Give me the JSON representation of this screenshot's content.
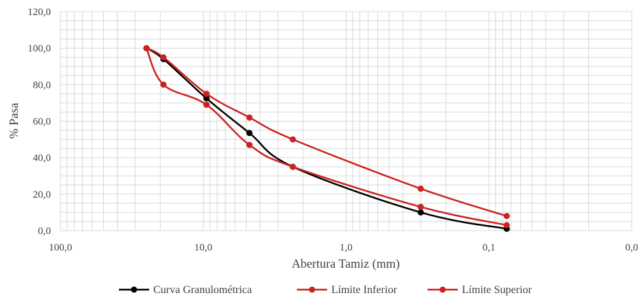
{
  "chart_data": {
    "type": "line",
    "title": "",
    "xlabel": "Abertura Tamiz (mm)",
    "ylabel": "% Pasa",
    "x_scale": "log",
    "x_reversed": true,
    "xlim": [
      100,
      0.01
    ],
    "ylim": [
      0,
      120
    ],
    "x_tick_labels": [
      "100,0",
      "10,0",
      "1,0",
      "0,1",
      "0,0"
    ],
    "y_tick_labels": [
      "0,0",
      "20,0",
      "40,0",
      "60,0",
      "80,0",
      "100,0",
      "120,0"
    ],
    "y_ticks": [
      0,
      20,
      40,
      60,
      80,
      100,
      120
    ],
    "grid": true,
    "legend_position": "bottom",
    "series": [
      {
        "name": "Curva Granulométrica",
        "color": "#000000",
        "x": [
          25,
          19,
          9.5,
          4.75,
          2.36,
          0.3,
          0.075
        ],
        "y": [
          100,
          94,
          72.5,
          53.5,
          35,
          10,
          1
        ]
      },
      {
        "name": "Límite Inferior",
        "color": "#cc2222",
        "x": [
          25,
          19,
          9.5,
          4.75,
          2.36,
          0.3,
          0.075
        ],
        "y": [
          100,
          80,
          69,
          47,
          35,
          13,
          3
        ]
      },
      {
        "name": "Límite Superior",
        "color": "#cc2222",
        "x": [
          25,
          19,
          9.5,
          4.75,
          2.36,
          0.3,
          0.075
        ],
        "y": [
          100,
          95,
          75,
          62,
          50,
          23,
          8
        ]
      }
    ]
  }
}
